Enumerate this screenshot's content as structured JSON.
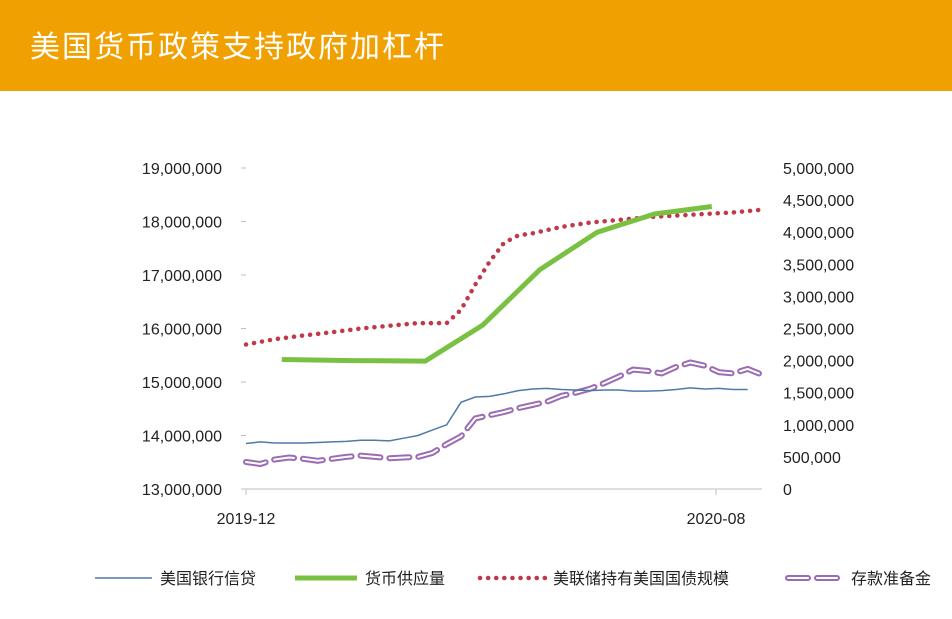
{
  "page": {
    "title": "美国货币政策支持政府加杠杆"
  },
  "chart_data": {
    "type": "line",
    "title": "",
    "xlabel": "",
    "ylabel": "",
    "x_ticks": [
      "2019-12",
      "2020-08"
    ],
    "x_range": [
      0,
      36
    ],
    "y_left": {
      "range": [
        13000000,
        19000000
      ],
      "ticks": [
        13000000,
        14000000,
        15000000,
        16000000,
        17000000,
        18000000,
        19000000
      ],
      "tick_labels": [
        "13,000,000",
        "14,000,000",
        "15,000,000",
        "16,000,000",
        "17,000,000",
        "18,000,000",
        "19,000,000"
      ]
    },
    "y_right": {
      "range": [
        0,
        5000000
      ],
      "ticks": [
        0,
        500000,
        1000000,
        1500000,
        2000000,
        2500000,
        3000000,
        3500000,
        4000000,
        4500000,
        5000000
      ],
      "tick_labels": [
        "0",
        "500,000",
        "1,000,000",
        "1,500,000",
        "2,000,000",
        "2,500,000",
        "3,000,000",
        "3,500,000",
        "4,000,000",
        "4,500,000",
        "5,000,000"
      ]
    },
    "grid": false,
    "legend_position": "bottom",
    "series": [
      {
        "name": "美国银行信贷",
        "axis": "left",
        "color": "#4f7aa8",
        "style": "solid-thin",
        "x": [
          0,
          1,
          2,
          3,
          4,
          5,
          6,
          7,
          8,
          9,
          10,
          11,
          12,
          13,
          14,
          15,
          16,
          17,
          18,
          19,
          20,
          21,
          22,
          23,
          24,
          25,
          26,
          27,
          28,
          29,
          30,
          31,
          32,
          33,
          34,
          35
        ],
        "values": [
          13850000,
          13880000,
          13860000,
          13860000,
          13860000,
          13870000,
          13880000,
          13890000,
          13910000,
          13910000,
          13900000,
          13950000,
          14000000,
          14100000,
          14200000,
          14620000,
          14720000,
          14730000,
          14780000,
          14840000,
          14870000,
          14880000,
          14860000,
          14850000,
          14840000,
          14850000,
          14850000,
          14830000,
          14830000,
          14840000,
          14860000,
          14890000,
          14870000,
          14880000,
          14860000,
          14860000
        ]
      },
      {
        "name": "货币供应量",
        "axis": "left",
        "color": "#7ac143",
        "style": "solid-thick",
        "x": [
          2.5,
          7.5,
          12.5,
          16.5,
          20.5,
          24.5,
          28.5,
          32.5
        ],
        "values": [
          15420000,
          15400000,
          15390000,
          16060000,
          17100000,
          17800000,
          18140000,
          18280000
        ]
      },
      {
        "name": "美联储持有美国国债规模",
        "axis": "left",
        "color": "#c0394b",
        "style": "dotted",
        "x": [
          0,
          2,
          4,
          6,
          8,
          10,
          12,
          14,
          15,
          16,
          17,
          18,
          19,
          20,
          22,
          24,
          26,
          28,
          30,
          32,
          34,
          36
        ],
        "values": [
          15700000,
          15800000,
          15870000,
          15930000,
          16000000,
          16050000,
          16100000,
          16100000,
          16350000,
          16820000,
          17250000,
          17600000,
          17740000,
          17780000,
          17900000,
          17980000,
          18030000,
          18080000,
          18110000,
          18140000,
          18170000,
          18220000
        ]
      },
      {
        "name": "存款准备金",
        "axis": "right",
        "color": "#9b6cb3",
        "style": "dashed-double",
        "x": [
          0,
          1,
          2,
          3,
          4,
          5,
          6,
          7,
          8,
          9,
          10,
          11,
          12,
          13,
          14,
          15,
          16,
          17,
          18,
          19,
          20,
          21,
          22,
          23,
          24,
          25,
          26,
          27,
          28,
          29,
          30,
          31,
          32,
          33,
          34,
          35,
          36
        ],
        "values": [
          420000,
          390000,
          460000,
          490000,
          470000,
          440000,
          470000,
          500000,
          520000,
          500000,
          480000,
          490000,
          500000,
          560000,
          700000,
          820000,
          1100000,
          1150000,
          1200000,
          1260000,
          1310000,
          1360000,
          1450000,
          1500000,
          1560000,
          1650000,
          1750000,
          1860000,
          1840000,
          1800000,
          1900000,
          1970000,
          1920000,
          1820000,
          1800000,
          1870000,
          1780000
        ]
      }
    ]
  }
}
